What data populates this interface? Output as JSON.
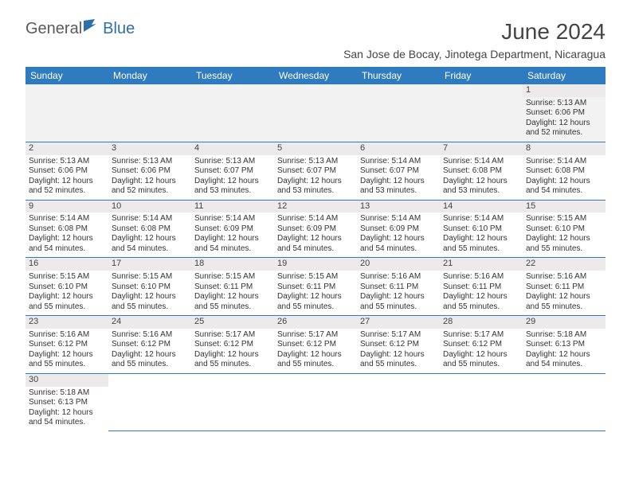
{
  "brand": {
    "part1": "General",
    "part2": "Blue"
  },
  "title": "June 2024",
  "location": "San Jose de Bocay, Jinotega Department, Nicaragua",
  "colors": {
    "header_bg": "#2f7bbf",
    "header_fg": "#ffffff",
    "daynum_bg": "#eceaea",
    "rule": "#2f7bbf",
    "text": "#333333",
    "brand_blue": "#2f6fab"
  },
  "weekdays": [
    "Sunday",
    "Monday",
    "Tuesday",
    "Wednesday",
    "Thursday",
    "Friday",
    "Saturday"
  ],
  "first_weekday_index": 6,
  "days": [
    {
      "n": 1,
      "sunrise": "5:13 AM",
      "sunset": "6:06 PM",
      "daylight": "12 hours and 52 minutes."
    },
    {
      "n": 2,
      "sunrise": "5:13 AM",
      "sunset": "6:06 PM",
      "daylight": "12 hours and 52 minutes."
    },
    {
      "n": 3,
      "sunrise": "5:13 AM",
      "sunset": "6:06 PM",
      "daylight": "12 hours and 52 minutes."
    },
    {
      "n": 4,
      "sunrise": "5:13 AM",
      "sunset": "6:07 PM",
      "daylight": "12 hours and 53 minutes."
    },
    {
      "n": 5,
      "sunrise": "5:13 AM",
      "sunset": "6:07 PM",
      "daylight": "12 hours and 53 minutes."
    },
    {
      "n": 6,
      "sunrise": "5:14 AM",
      "sunset": "6:07 PM",
      "daylight": "12 hours and 53 minutes."
    },
    {
      "n": 7,
      "sunrise": "5:14 AM",
      "sunset": "6:08 PM",
      "daylight": "12 hours and 53 minutes."
    },
    {
      "n": 8,
      "sunrise": "5:14 AM",
      "sunset": "6:08 PM",
      "daylight": "12 hours and 54 minutes."
    },
    {
      "n": 9,
      "sunrise": "5:14 AM",
      "sunset": "6:08 PM",
      "daylight": "12 hours and 54 minutes."
    },
    {
      "n": 10,
      "sunrise": "5:14 AM",
      "sunset": "6:08 PM",
      "daylight": "12 hours and 54 minutes."
    },
    {
      "n": 11,
      "sunrise": "5:14 AM",
      "sunset": "6:09 PM",
      "daylight": "12 hours and 54 minutes."
    },
    {
      "n": 12,
      "sunrise": "5:14 AM",
      "sunset": "6:09 PM",
      "daylight": "12 hours and 54 minutes."
    },
    {
      "n": 13,
      "sunrise": "5:14 AM",
      "sunset": "6:09 PM",
      "daylight": "12 hours and 54 minutes."
    },
    {
      "n": 14,
      "sunrise": "5:14 AM",
      "sunset": "6:10 PM",
      "daylight": "12 hours and 55 minutes."
    },
    {
      "n": 15,
      "sunrise": "5:15 AM",
      "sunset": "6:10 PM",
      "daylight": "12 hours and 55 minutes."
    },
    {
      "n": 16,
      "sunrise": "5:15 AM",
      "sunset": "6:10 PM",
      "daylight": "12 hours and 55 minutes."
    },
    {
      "n": 17,
      "sunrise": "5:15 AM",
      "sunset": "6:10 PM",
      "daylight": "12 hours and 55 minutes."
    },
    {
      "n": 18,
      "sunrise": "5:15 AM",
      "sunset": "6:11 PM",
      "daylight": "12 hours and 55 minutes."
    },
    {
      "n": 19,
      "sunrise": "5:15 AM",
      "sunset": "6:11 PM",
      "daylight": "12 hours and 55 minutes."
    },
    {
      "n": 20,
      "sunrise": "5:16 AM",
      "sunset": "6:11 PM",
      "daylight": "12 hours and 55 minutes."
    },
    {
      "n": 21,
      "sunrise": "5:16 AM",
      "sunset": "6:11 PM",
      "daylight": "12 hours and 55 minutes."
    },
    {
      "n": 22,
      "sunrise": "5:16 AM",
      "sunset": "6:11 PM",
      "daylight": "12 hours and 55 minutes."
    },
    {
      "n": 23,
      "sunrise": "5:16 AM",
      "sunset": "6:12 PM",
      "daylight": "12 hours and 55 minutes."
    },
    {
      "n": 24,
      "sunrise": "5:16 AM",
      "sunset": "6:12 PM",
      "daylight": "12 hours and 55 minutes."
    },
    {
      "n": 25,
      "sunrise": "5:17 AM",
      "sunset": "6:12 PM",
      "daylight": "12 hours and 55 minutes."
    },
    {
      "n": 26,
      "sunrise": "5:17 AM",
      "sunset": "6:12 PM",
      "daylight": "12 hours and 55 minutes."
    },
    {
      "n": 27,
      "sunrise": "5:17 AM",
      "sunset": "6:12 PM",
      "daylight": "12 hours and 55 minutes."
    },
    {
      "n": 28,
      "sunrise": "5:17 AM",
      "sunset": "6:12 PM",
      "daylight": "12 hours and 55 minutes."
    },
    {
      "n": 29,
      "sunrise": "5:18 AM",
      "sunset": "6:13 PM",
      "daylight": "12 hours and 54 minutes."
    },
    {
      "n": 30,
      "sunrise": "5:18 AM",
      "sunset": "6:13 PM",
      "daylight": "12 hours and 54 minutes."
    }
  ],
  "labels": {
    "sunrise": "Sunrise:",
    "sunset": "Sunset:",
    "daylight": "Daylight:"
  }
}
